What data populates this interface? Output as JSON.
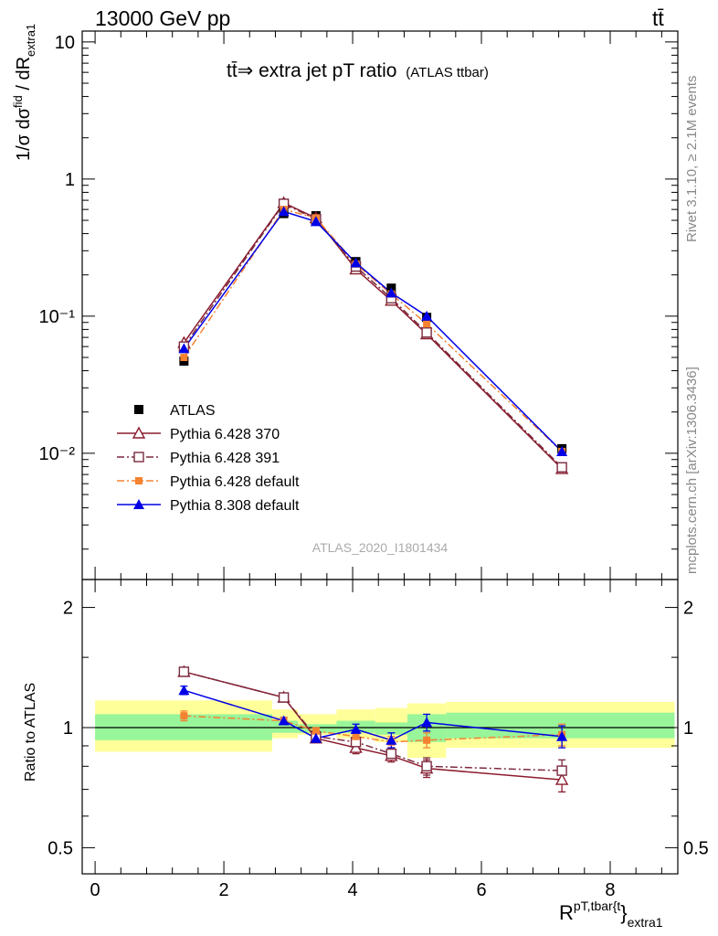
{
  "header": {
    "left": "13000 GeV pp",
    "right": "tt̄"
  },
  "side_labels": {
    "rivet": "Rivet 3.1.10, ≥ 2.1M events",
    "mcplots": "mcplots.cern.ch [arXiv:1306.3436]"
  },
  "chart_data": [
    {
      "type": "scatter",
      "title": "tt̄⇒ extra jet pT ratio",
      "title_suffix": "(ATLAS ttbar)",
      "ylabel": "1/σ dσ^fid / dR^{pT,tbar{t}}_extra1",
      "yscale": "log",
      "ylim": [
        0.0012,
        12
      ],
      "ytick_labels": [
        "10⁻²",
        "10⁻¹",
        "1",
        "10"
      ],
      "xlim": [
        -0.2,
        9.05
      ],
      "watermark": "ATLAS_2020_I1801434",
      "legend_position": "lower-left",
      "x": [
        1.38,
        2.93,
        3.43,
        4.05,
        4.6,
        5.15,
        7.25
      ],
      "series": [
        {
          "name": "ATLAS",
          "color": "#000000",
          "marker": "square-filled",
          "values": [
            0.047,
            0.56,
            0.54,
            0.25,
            0.16,
            0.098,
            0.0108
          ]
        },
        {
          "name": "Pythia 6.428 370",
          "color": "#8b1c2e",
          "marker": "triangle-open",
          "line": "solid",
          "values": [
            0.064,
            0.67,
            0.52,
            0.22,
            0.13,
            0.074,
            0.0077
          ]
        },
        {
          "name": "Pythia 6.428 391",
          "color": "#7b2a3e",
          "marker": "square-open",
          "line": "dashdot",
          "values": [
            0.06,
            0.66,
            0.51,
            0.23,
            0.135,
            0.076,
            0.0079
          ]
        },
        {
          "name": "Pythia 6.428 default",
          "color": "#f58231",
          "marker": "square-filled-small",
          "line": "dashdot",
          "values": [
            0.05,
            0.6,
            0.52,
            0.24,
            0.145,
            0.088,
            0.0103
          ]
        },
        {
          "name": "Pythia 8.308 default",
          "color": "#0000e6",
          "marker": "triangle-filled",
          "line": "solid",
          "values": [
            0.058,
            0.58,
            0.49,
            0.245,
            0.148,
            0.1,
            0.0103
          ]
        }
      ]
    },
    {
      "type": "scatter",
      "ylabel": "Ratio to ATLAS",
      "yscale": "log",
      "ylim": [
        0.43,
        2.35
      ],
      "ytick_labels": [
        "0.5",
        "1",
        "2"
      ],
      "xlabel": "R^{pT,tbar{t}}_extra1",
      "xlim": [
        -0.2,
        9.05
      ],
      "xtick_labels": [
        "0",
        "2",
        "4",
        "6",
        "8"
      ],
      "reference_line": 1,
      "bands": {
        "bin_edges": [
          0,
          2.75,
          3.15,
          3.75,
          4.35,
          4.85,
          5.45,
          9.0
        ],
        "inner_green": [
          [
            0.93,
            1.08
          ],
          [
            0.97,
            1.04
          ],
          [
            0.97,
            1.02
          ],
          [
            0.97,
            1.04
          ],
          [
            0.96,
            1.03
          ],
          [
            0.92,
            1.08
          ],
          [
            0.94,
            1.09
          ]
        ],
        "outer_yellow": [
          [
            0.87,
            1.17
          ],
          [
            0.94,
            1.11
          ],
          [
            0.96,
            1.08
          ],
          [
            0.94,
            1.11
          ],
          [
            0.92,
            1.12
          ],
          [
            0.84,
            1.15
          ],
          [
            0.89,
            1.16
          ]
        ]
      },
      "x": [
        1.38,
        2.93,
        3.43,
        4.05,
        4.6,
        5.15,
        7.25
      ],
      "series": [
        {
          "name": "Pythia 6.428 370",
          "values": [
            1.38,
            1.19,
            0.94,
            0.89,
            0.85,
            0.79,
            0.74
          ],
          "errors": [
            0.02,
            0.02,
            0.02,
            0.03,
            0.03,
            0.04,
            0.05
          ]
        },
        {
          "name": "Pythia 6.428 391",
          "values": [
            1.38,
            1.19,
            0.95,
            0.92,
            0.86,
            0.8,
            0.78
          ],
          "errors": [
            0.02,
            0.02,
            0.02,
            0.03,
            0.03,
            0.04,
            0.05
          ]
        },
        {
          "name": "Pythia 6.428 default",
          "values": [
            1.07,
            1.04,
            0.98,
            0.95,
            0.92,
            0.93,
            0.96
          ],
          "errors": [
            0.03,
            0.02,
            0.02,
            0.03,
            0.03,
            0.04,
            0.06
          ]
        },
        {
          "name": "Pythia 8.308 default",
          "values": [
            1.24,
            1.04,
            0.94,
            0.99,
            0.93,
            1.03,
            0.95
          ],
          "errors": [
            0.03,
            0.02,
            0.02,
            0.03,
            0.04,
            0.05,
            0.06
          ]
        }
      ]
    }
  ]
}
